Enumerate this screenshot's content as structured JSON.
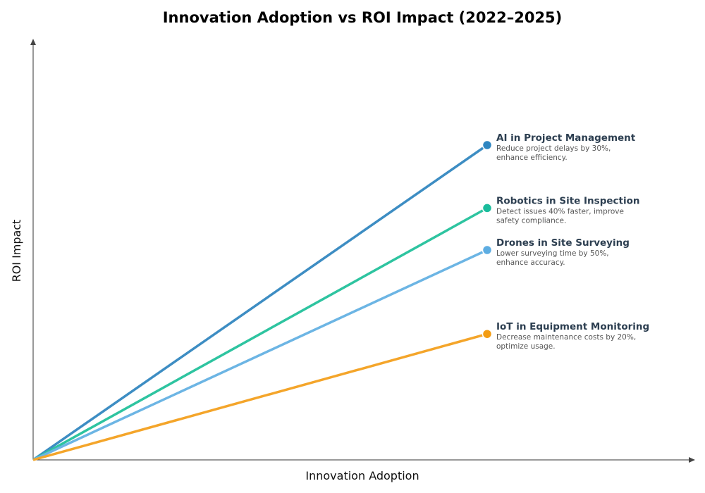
{
  "chart_data": {
    "type": "line",
    "title": "Innovation Adoption vs ROI Impact (2022–2025)",
    "xlabel": "Innovation Adoption",
    "ylabel": "ROI Impact",
    "xlim": [
      0,
      10
    ],
    "ylim": [
      0,
      10
    ],
    "grid": false,
    "ticks": false,
    "series": [
      {
        "name": "AI in Project Management",
        "description": [
          "Reduce project delays by 30%,",
          "enhance efficiency."
        ],
        "color": "#2e86c1",
        "line_color": "#3d8dc3",
        "x": [
          0,
          7
        ],
        "y": [
          0,
          7.5
        ]
      },
      {
        "name": "Robotics in Site Inspection",
        "description": [
          "Detect issues 40% faster, improve",
          "safety compliance."
        ],
        "color": "#1abc9c",
        "line_color": "#2ec4a0",
        "x": [
          0,
          7
        ],
        "y": [
          0,
          6
        ]
      },
      {
        "name": "Drones in Site Surveying",
        "description": [
          "Lower surveying time by 50%,",
          "enhance accuracy."
        ],
        "color": "#5dade2",
        "line_color": "#6cb5e4",
        "x": [
          0,
          7
        ],
        "y": [
          0,
          5
        ]
      },
      {
        "name": "IoT in Equipment Monitoring",
        "description": [
          "Decrease maintenance costs by 20%,",
          "optimize usage."
        ],
        "color": "#f39c12",
        "line_color": "#f4a52a",
        "x": [
          0,
          7
        ],
        "y": [
          0,
          3
        ]
      }
    ]
  }
}
